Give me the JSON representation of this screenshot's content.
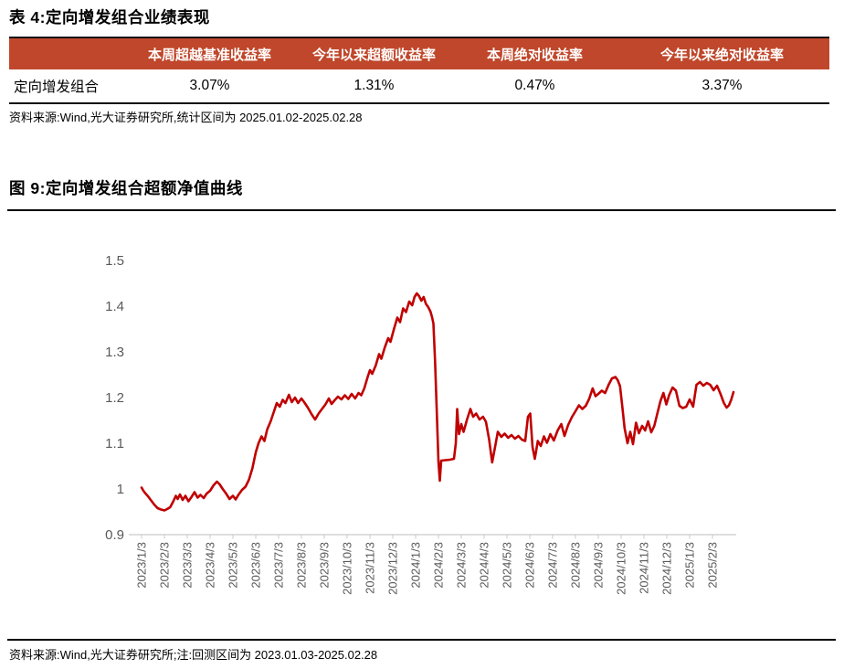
{
  "table_section": {
    "title": "表 4:定向增发组合业绩表现",
    "columns": [
      "",
      "本周超越基准收益率",
      "今年以来超额收益率",
      "本周绝对收益率",
      "今年以来绝对收益率"
    ],
    "rows": [
      {
        "label": "定向增发组合",
        "values": [
          "3.07%",
          "1.31%",
          "0.47%",
          "3.37%"
        ]
      }
    ],
    "source": "资料来源:Wind,光大证券研究所,统计区间为 2025.01.02-2025.02.28",
    "header_bg": "#C0472B",
    "header_text_color": "#FFFFFF"
  },
  "figure_section": {
    "title": "图 9:定向增发组合超额净值曲线",
    "source": "资料来源:Wind,光大证券研究所;注:回测区间为 2023.01.03-2025.02.28"
  },
  "chart_data": {
    "type": "line",
    "title": "定向增发组合超额净值曲线",
    "ylim": [
      0.9,
      1.5
    ],
    "y_ticks": [
      0.9,
      1,
      1.1,
      1.2,
      1.3,
      1.4,
      1.5
    ],
    "x_labels": [
      "2023/1/3",
      "2023/2/3",
      "2023/3/3",
      "2023/4/3",
      "2023/5/3",
      "2023/6/3",
      "2023/7/3",
      "2023/8/3",
      "2023/9/3",
      "2023/10/3",
      "2023/11/3",
      "2023/12/3",
      "2024/1/3",
      "2024/2/3",
      "2024/3/3",
      "2024/4/3",
      "2024/5/3",
      "2024/6/3",
      "2024/7/3",
      "2024/8/3",
      "2024/9/3",
      "2024/10/3",
      "2024/11/3",
      "2024/12/3",
      "2025/1/3",
      "2025/2/3"
    ],
    "x_unit": "months_since_2023/1/3",
    "grid": false,
    "legend": "none",
    "line_color": "#C00000",
    "axis_color": "#C9C9C9",
    "label_color": "#595959",
    "series": [
      {
        "name": "定向增发组合超额净值",
        "points": [
          [
            0,
            1.003
          ],
          [
            0.08,
            0.996
          ],
          [
            0.17,
            0.99
          ],
          [
            0.28,
            0.984
          ],
          [
            0.4,
            0.976
          ],
          [
            0.55,
            0.966
          ],
          [
            0.7,
            0.958
          ],
          [
            0.85,
            0.955
          ],
          [
            1,
            0.953
          ],
          [
            1.12,
            0.956
          ],
          [
            1.25,
            0.96
          ],
          [
            1.38,
            0.972
          ],
          [
            1.5,
            0.985
          ],
          [
            1.58,
            0.978
          ],
          [
            1.68,
            0.988
          ],
          [
            1.8,
            0.976
          ],
          [
            1.92,
            0.985
          ],
          [
            2.05,
            0.973
          ],
          [
            2.18,
            0.982
          ],
          [
            2.32,
            0.993
          ],
          [
            2.45,
            0.981
          ],
          [
            2.58,
            0.987
          ],
          [
            2.72,
            0.98
          ],
          [
            2.85,
            0.99
          ],
          [
            3,
            0.996
          ],
          [
            3.15,
            1.008
          ],
          [
            3.3,
            1.016
          ],
          [
            3.42,
            1.01
          ],
          [
            3.55,
            1
          ],
          [
            3.7,
            0.99
          ],
          [
            3.85,
            0.978
          ],
          [
            4,
            0.985
          ],
          [
            4.12,
            0.977
          ],
          [
            4.25,
            0.988
          ],
          [
            4.4,
            0.998
          ],
          [
            4.55,
            1.005
          ],
          [
            4.7,
            1.02
          ],
          [
            4.85,
            1.045
          ],
          [
            5,
            1.08
          ],
          [
            5.12,
            1.1
          ],
          [
            5.25,
            1.115
          ],
          [
            5.38,
            1.105
          ],
          [
            5.5,
            1.13
          ],
          [
            5.65,
            1.148
          ],
          [
            5.8,
            1.17
          ],
          [
            5.92,
            1.188
          ],
          [
            6.05,
            1.18
          ],
          [
            6.18,
            1.195
          ],
          [
            6.3,
            1.188
          ],
          [
            6.45,
            1.206
          ],
          [
            6.58,
            1.19
          ],
          [
            6.72,
            1.2
          ],
          [
            6.85,
            1.188
          ],
          [
            7,
            1.198
          ],
          [
            7.12,
            1.19
          ],
          [
            7.28,
            1.178
          ],
          [
            7.45,
            1.163
          ],
          [
            7.6,
            1.152
          ],
          [
            7.75,
            1.165
          ],
          [
            7.9,
            1.175
          ],
          [
            8.05,
            1.185
          ],
          [
            8.2,
            1.198
          ],
          [
            8.32,
            1.186
          ],
          [
            8.45,
            1.194
          ],
          [
            8.6,
            1.202
          ],
          [
            8.75,
            1.196
          ],
          [
            8.9,
            1.205
          ],
          [
            9.05,
            1.197
          ],
          [
            9.2,
            1.208
          ],
          [
            9.35,
            1.198
          ],
          [
            9.5,
            1.21
          ],
          [
            9.62,
            1.205
          ],
          [
            9.75,
            1.22
          ],
          [
            9.9,
            1.245
          ],
          [
            10,
            1.26
          ],
          [
            10.1,
            1.252
          ],
          [
            10.25,
            1.27
          ],
          [
            10.4,
            1.295
          ],
          [
            10.5,
            1.285
          ],
          [
            10.65,
            1.31
          ],
          [
            10.8,
            1.33
          ],
          [
            10.9,
            1.322
          ],
          [
            11.05,
            1.35
          ],
          [
            11.2,
            1.375
          ],
          [
            11.32,
            1.365
          ],
          [
            11.45,
            1.395
          ],
          [
            11.58,
            1.387
          ],
          [
            11.72,
            1.41
          ],
          [
            11.85,
            1.402
          ],
          [
            11.95,
            1.42
          ],
          [
            12.05,
            1.428
          ],
          [
            12.15,
            1.422
          ],
          [
            12.25,
            1.412
          ],
          [
            12.35,
            1.42
          ],
          [
            12.45,
            1.405
          ],
          [
            12.55,
            1.398
          ],
          [
            12.65,
            1.388
          ],
          [
            12.72,
            1.376
          ],
          [
            12.78,
            1.362
          ],
          [
            12.85,
            1.28
          ],
          [
            12.92,
            1.18
          ],
          [
            13,
            1.06
          ],
          [
            13.06,
            1.018
          ],
          [
            13.12,
            1.062
          ],
          [
            13.3,
            1.063
          ],
          [
            13.5,
            1.064
          ],
          [
            13.68,
            1.066
          ],
          [
            13.76,
            1.1
          ],
          [
            13.82,
            1.175
          ],
          [
            13.9,
            1.12
          ],
          [
            14,
            1.142
          ],
          [
            14.1,
            1.125
          ],
          [
            14.25,
            1.152
          ],
          [
            14.4,
            1.175
          ],
          [
            14.52,
            1.158
          ],
          [
            14.65,
            1.165
          ],
          [
            14.8,
            1.152
          ],
          [
            14.95,
            1.158
          ],
          [
            15.08,
            1.147
          ],
          [
            15.22,
            1.108
          ],
          [
            15.35,
            1.058
          ],
          [
            15.48,
            1.092
          ],
          [
            15.6,
            1.125
          ],
          [
            15.75,
            1.114
          ],
          [
            15.9,
            1.121
          ],
          [
            16.05,
            1.112
          ],
          [
            16.2,
            1.118
          ],
          [
            16.35,
            1.11
          ],
          [
            16.5,
            1.116
          ],
          [
            16.65,
            1.108
          ],
          [
            16.8,
            1.105
          ],
          [
            16.92,
            1.158
          ],
          [
            17.02,
            1.165
          ],
          [
            17.12,
            1.092
          ],
          [
            17.22,
            1.066
          ],
          [
            17.35,
            1.105
          ],
          [
            17.48,
            1.094
          ],
          [
            17.62,
            1.115
          ],
          [
            17.75,
            1.101
          ],
          [
            17.9,
            1.12
          ],
          [
            18.05,
            1.106
          ],
          [
            18.22,
            1.128
          ],
          [
            18.38,
            1.142
          ],
          [
            18.52,
            1.116
          ],
          [
            18.68,
            1.14
          ],
          [
            18.85,
            1.158
          ],
          [
            19,
            1.17
          ],
          [
            19.15,
            1.183
          ],
          [
            19.3,
            1.175
          ],
          [
            19.45,
            1.182
          ],
          [
            19.6,
            1.197
          ],
          [
            19.75,
            1.22
          ],
          [
            19.88,
            1.203
          ],
          [
            20,
            1.208
          ],
          [
            20.15,
            1.215
          ],
          [
            20.3,
            1.21
          ],
          [
            20.45,
            1.228
          ],
          [
            20.6,
            1.242
          ],
          [
            20.75,
            1.245
          ],
          [
            20.85,
            1.238
          ],
          [
            20.95,
            1.225
          ],
          [
            21.05,
            1.18
          ],
          [
            21.15,
            1.133
          ],
          [
            21.28,
            1.1
          ],
          [
            21.4,
            1.125
          ],
          [
            21.52,
            1.098
          ],
          [
            21.65,
            1.145
          ],
          [
            21.78,
            1.122
          ],
          [
            21.92,
            1.138
          ],
          [
            22.05,
            1.128
          ],
          [
            22.18,
            1.148
          ],
          [
            22.32,
            1.124
          ],
          [
            22.45,
            1.138
          ],
          [
            22.6,
            1.168
          ],
          [
            22.72,
            1.192
          ],
          [
            22.85,
            1.21
          ],
          [
            22.98,
            1.185
          ],
          [
            23.1,
            1.205
          ],
          [
            23.25,
            1.222
          ],
          [
            23.4,
            1.215
          ],
          [
            23.55,
            1.182
          ],
          [
            23.7,
            1.177
          ],
          [
            23.85,
            1.18
          ],
          [
            24,
            1.196
          ],
          [
            24.15,
            1.18
          ],
          [
            24.3,
            1.228
          ],
          [
            24.45,
            1.234
          ],
          [
            24.6,
            1.226
          ],
          [
            24.75,
            1.232
          ],
          [
            24.9,
            1.228
          ],
          [
            25.05,
            1.216
          ],
          [
            25.2,
            1.226
          ],
          [
            25.35,
            1.208
          ],
          [
            25.5,
            1.188
          ],
          [
            25.62,
            1.178
          ],
          [
            25.72,
            1.183
          ],
          [
            25.82,
            1.195
          ],
          [
            25.92,
            1.212
          ]
        ]
      }
    ]
  }
}
